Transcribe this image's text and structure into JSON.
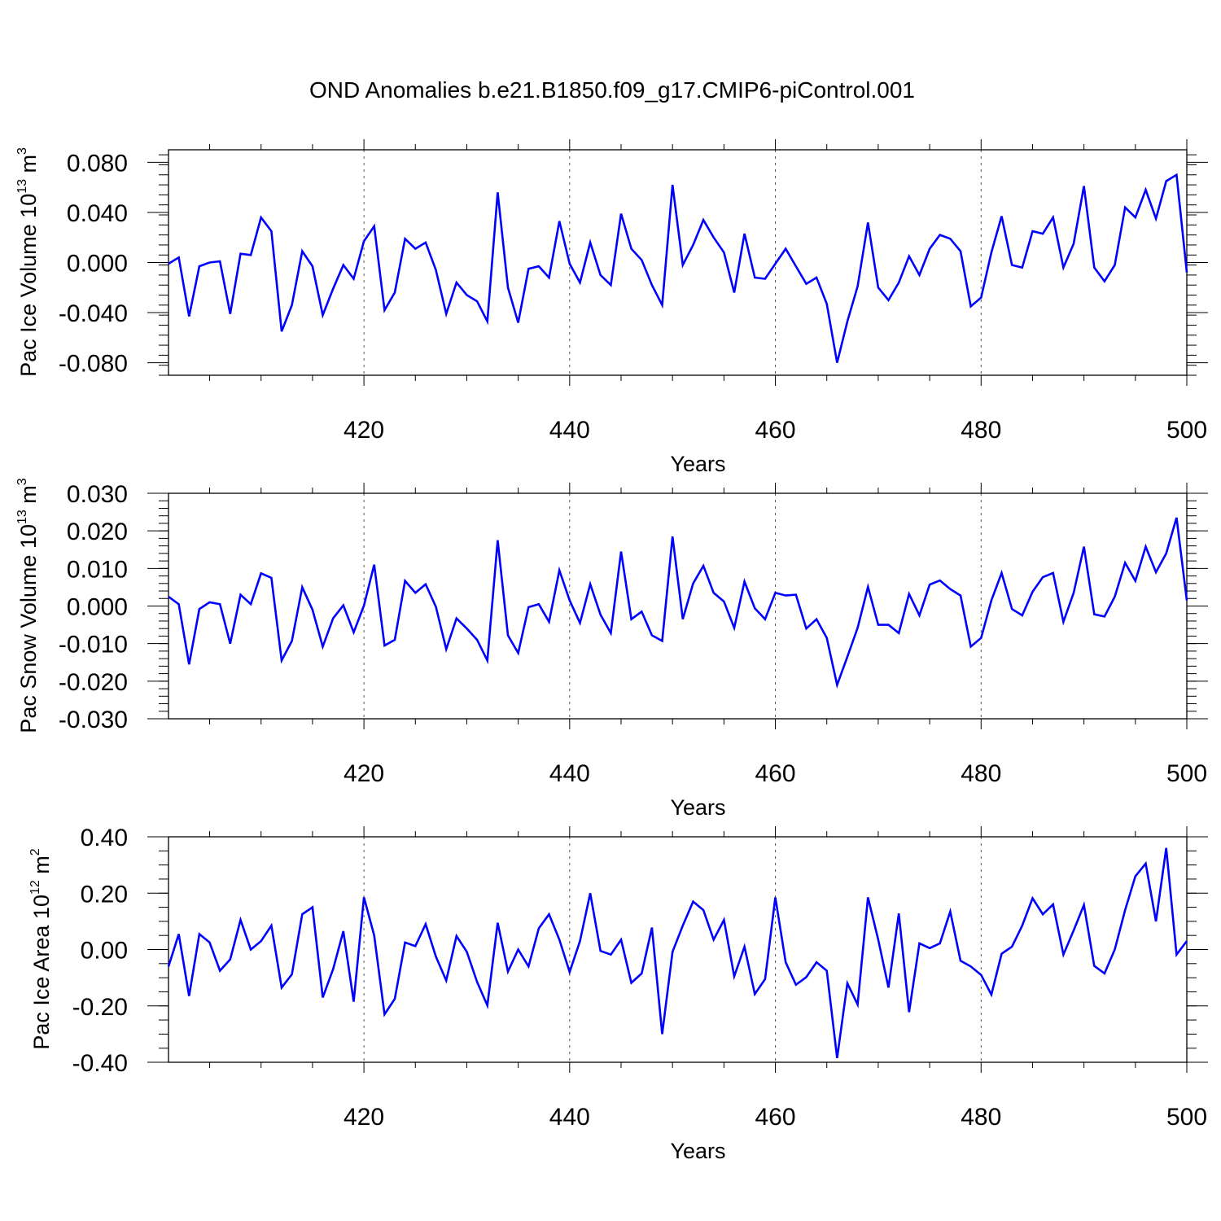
{
  "title": "OND Anomalies b.e21.B1850.f09_g17.CMIP6-piControl.001",
  "line_color": "#0000ff",
  "chart_data": [
    {
      "type": "line",
      "ylabel": {
        "main": "Pac Ice Volume 10",
        "exp": "13",
        "unit": " m",
        "unit_exp": "3"
      },
      "xlabel": "Years",
      "xlim": [
        401,
        500
      ],
      "ylim": [
        -0.09,
        0.09
      ],
      "xticks": [
        420,
        440,
        460,
        480,
        500
      ],
      "xtick_labels": [
        "420",
        "440",
        "460",
        "480",
        "500"
      ],
      "yticks": [
        -0.08,
        -0.04,
        0.0,
        0.04,
        0.08
      ],
      "ytick_labels": [
        "-0.080",
        "-0.040",
        "0.000",
        "0.040",
        "0.080"
      ],
      "yminor_step": 0.008,
      "grid_x": true,
      "x_start": 401,
      "values": [
        -0.001,
        0.004,
        -0.043,
        -0.003,
        0.0,
        0.001,
        -0.041,
        0.007,
        0.006,
        0.036,
        0.025,
        -0.055,
        -0.034,
        0.009,
        -0.003,
        -0.042,
        -0.021,
        -0.002,
        -0.013,
        0.017,
        0.029,
        -0.038,
        -0.024,
        0.019,
        0.011,
        0.016,
        -0.006,
        -0.041,
        -0.016,
        -0.026,
        -0.031,
        -0.047,
        0.056,
        -0.02,
        -0.048,
        -0.005,
        -0.003,
        -0.012,
        0.033,
        -0.001,
        -0.016,
        0.016,
        -0.01,
        -0.018,
        0.039,
        0.011,
        0.002,
        -0.018,
        -0.034,
        0.062,
        -0.002,
        0.014,
        0.034,
        0.02,
        0.008,
        -0.024,
        0.023,
        -0.012,
        -0.013,
        -0.001,
        0.011,
        -0.003,
        -0.017,
        -0.012,
        -0.033,
        -0.08,
        -0.047,
        -0.019,
        0.032,
        -0.02,
        -0.03,
        -0.016,
        0.005,
        -0.01,
        0.011,
        0.022,
        0.019,
        0.009,
        -0.035,
        -0.028,
        0.008,
        0.037,
        -0.002,
        -0.004,
        0.025,
        0.023,
        0.036,
        -0.004,
        0.015,
        0.061,
        -0.004,
        -0.015,
        -0.002,
        0.044,
        0.036,
        0.058,
        0.035,
        0.065,
        0.07,
        -0.008
      ]
    },
    {
      "type": "line",
      "ylabel": {
        "main": "Pac Snow Volume 10",
        "exp": "13",
        "unit": " m",
        "unit_exp": "3"
      },
      "xlabel": "Years",
      "xlim": [
        401,
        500
      ],
      "ylim": [
        -0.03,
        0.03
      ],
      "xticks": [
        420,
        440,
        460,
        480,
        500
      ],
      "xtick_labels": [
        "420",
        "440",
        "460",
        "480",
        "500"
      ],
      "yticks": [
        -0.03,
        -0.02,
        -0.01,
        0.0,
        0.01,
        0.02,
        0.03
      ],
      "ytick_labels": [
        "-0.030",
        "-0.020",
        "-0.010",
        "0.000",
        "0.010",
        "0.020",
        "0.030"
      ],
      "yminor_step": 0.002,
      "grid_x": true,
      "x_start": 401,
      "values": [
        0.0025,
        0.0005,
        -0.0155,
        -0.0008,
        0.001,
        0.0005,
        -0.01,
        0.003,
        0.0005,
        0.0087,
        0.0075,
        -0.0145,
        -0.0093,
        0.005,
        -0.001,
        -0.0108,
        -0.0033,
        0.0002,
        -0.007,
        0.0001,
        0.011,
        -0.0105,
        -0.009,
        0.0067,
        0.0035,
        0.0058,
        -0.0002,
        -0.0115,
        -0.0033,
        -0.006,
        -0.009,
        -0.0145,
        0.0175,
        -0.0078,
        -0.0125,
        -0.0003,
        0.0005,
        -0.0042,
        0.0095,
        0.0015,
        -0.0045,
        0.0058,
        -0.0023,
        -0.0072,
        0.0145,
        -0.0035,
        -0.0015,
        -0.0078,
        -0.0093,
        0.0185,
        -0.0035,
        0.006,
        0.0107,
        0.0035,
        0.0012,
        -0.0058,
        0.0065,
        -0.0006,
        -0.0035,
        0.0035,
        0.0028,
        0.003,
        -0.006,
        -0.0035,
        -0.0085,
        -0.021,
        -0.0135,
        -0.0058,
        0.0051,
        -0.005,
        -0.005,
        -0.0072,
        0.0032,
        -0.0025,
        0.0057,
        0.0068,
        0.0045,
        0.0028,
        -0.0108,
        -0.0085,
        0.0015,
        0.0088,
        -0.0008,
        -0.0025,
        0.0038,
        0.0077,
        0.0088,
        -0.0042,
        0.0035,
        0.0158,
        -0.0022,
        -0.0028,
        0.0025,
        0.0115,
        0.0067,
        0.0158,
        0.009,
        0.014,
        0.0235,
        0.0015
      ]
    },
    {
      "type": "line",
      "ylabel": {
        "main": "Pac Ice Area 10",
        "exp": "12",
        "unit": " m",
        "unit_exp": "2"
      },
      "xlabel": "Years",
      "xlim": [
        401,
        500
      ],
      "ylim": [
        -0.4,
        0.4
      ],
      "xticks": [
        420,
        440,
        460,
        480,
        500
      ],
      "xtick_labels": [
        "420",
        "440",
        "460",
        "480",
        "500"
      ],
      "yticks": [
        -0.4,
        -0.2,
        0.0,
        0.2,
        0.4
      ],
      "ytick_labels": [
        "-0.40",
        "-0.20",
        "0.00",
        "0.20",
        "0.40"
      ],
      "yminor_step": 0.05,
      "grid_x": true,
      "x_start": 401,
      "values": [
        -0.06,
        0.055,
        -0.165,
        0.055,
        0.025,
        -0.075,
        -0.035,
        0.105,
        0.0,
        0.03,
        0.085,
        -0.135,
        -0.088,
        0.125,
        0.15,
        -0.17,
        -0.07,
        0.065,
        -0.185,
        0.185,
        0.05,
        -0.23,
        -0.175,
        0.025,
        0.012,
        0.09,
        -0.025,
        -0.11,
        0.048,
        -0.008,
        -0.115,
        -0.198,
        0.095,
        -0.078,
        0.0,
        -0.06,
        0.075,
        0.125,
        0.035,
        -0.08,
        0.03,
        0.2,
        -0.005,
        -0.018,
        0.035,
        -0.118,
        -0.085,
        0.078,
        -0.3,
        -0.008,
        0.085,
        0.17,
        0.14,
        0.035,
        0.105,
        -0.095,
        0.01,
        -0.158,
        -0.105,
        0.185,
        -0.045,
        -0.125,
        -0.098,
        -0.045,
        -0.075,
        -0.385,
        -0.12,
        -0.195,
        0.185,
        0.035,
        -0.135,
        0.128,
        -0.222,
        0.022,
        0.005,
        0.022,
        0.135,
        -0.04,
        -0.06,
        -0.09,
        -0.16,
        -0.015,
        0.01,
        0.085,
        0.182,
        0.125,
        0.16,
        -0.018,
        0.068,
        0.158,
        -0.058,
        -0.085,
        0.0,
        0.14,
        0.26,
        0.305,
        0.1,
        0.36,
        -0.018,
        0.03
      ]
    }
  ]
}
